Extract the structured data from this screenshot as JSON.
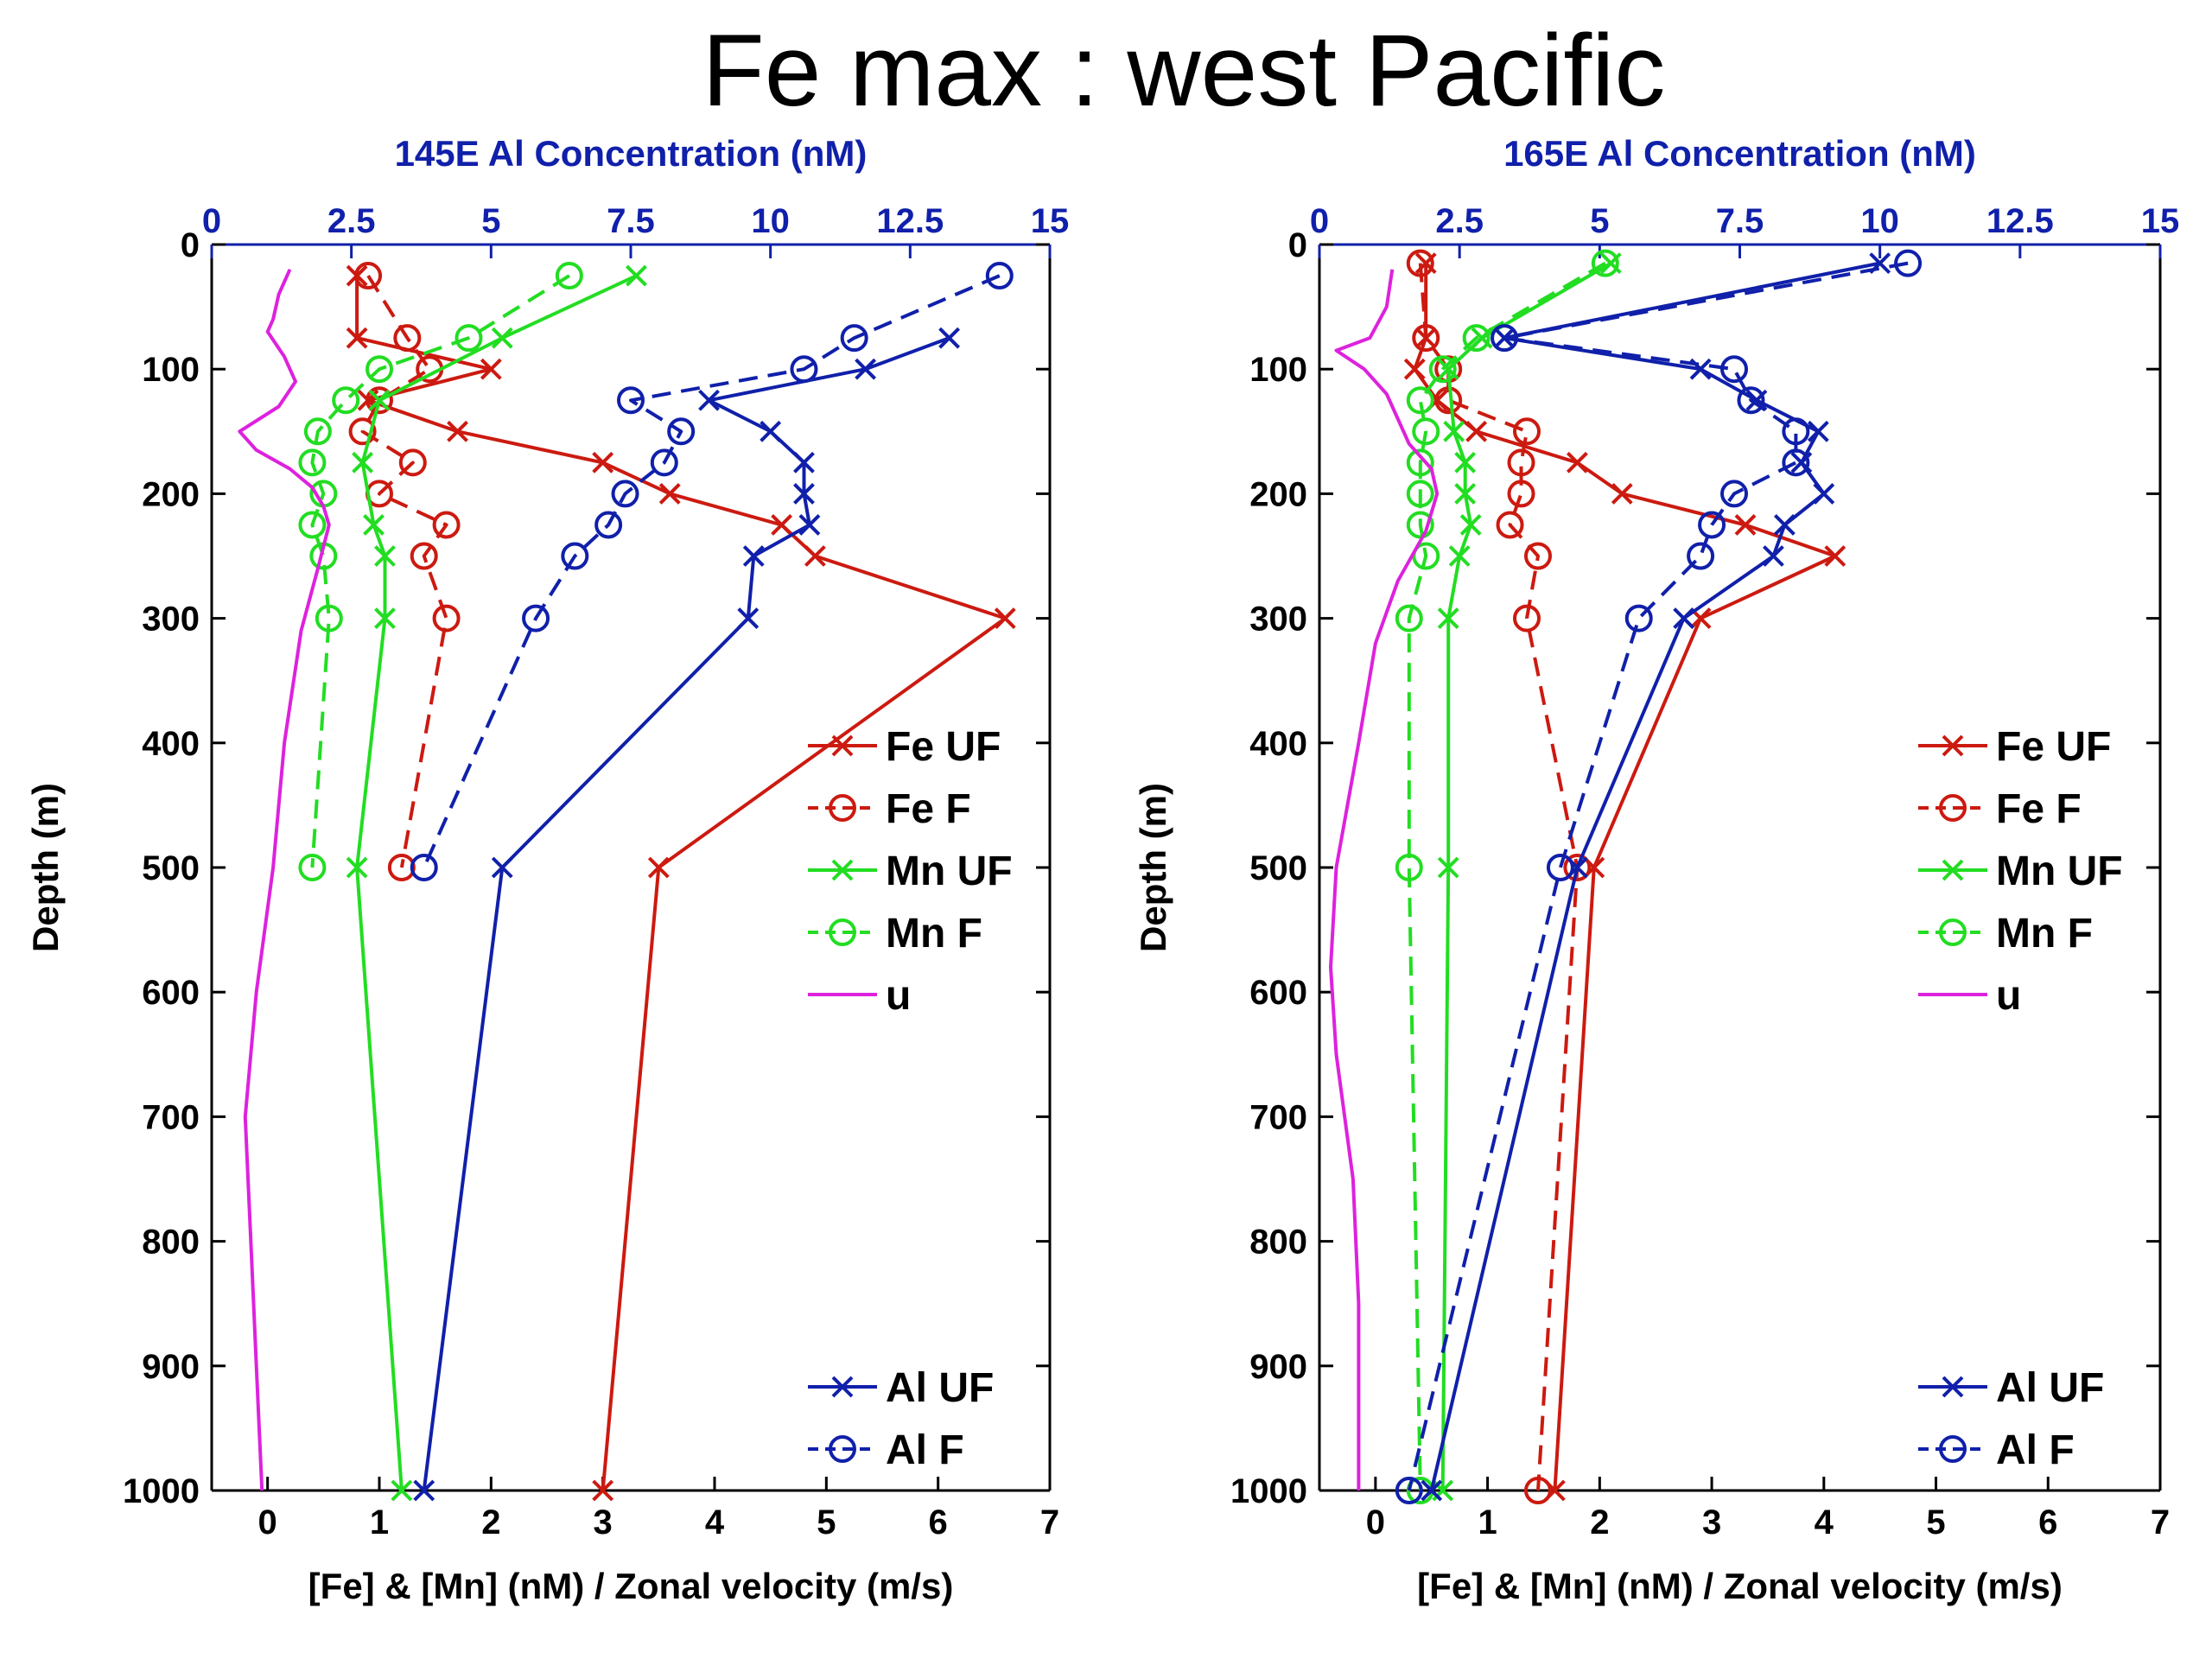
{
  "title": "Fe max : west Pacific",
  "colors": {
    "fe": "#cc1a10",
    "mn": "#22dd22",
    "al": "#1020aa",
    "u": "#dd22dd",
    "al_axis": "#1020aa"
  },
  "chart_data": [
    {
      "type": "line",
      "panel": "145E",
      "top_xlabel": "145E Al Concentration (nM)",
      "bottom_xlabel": "[Fe] & [Mn] (nM) / Zonal velocity (m/s)",
      "ylabel": "Depth (m)",
      "ylim": [
        1000,
        0
      ],
      "xlim": [
        -0.5,
        7
      ],
      "top_xlim": [
        0,
        15
      ],
      "x_ticks": [
        "0",
        "1",
        "2",
        "3",
        "4",
        "5",
        "6",
        "7"
      ],
      "top_ticks": [
        "0",
        "2.5",
        "5",
        "7.5",
        "10",
        "12.5",
        "15"
      ],
      "y_ticks": [
        "0",
        "100",
        "200",
        "300",
        "400",
        "500",
        "600",
        "700",
        "800",
        "900",
        "1000"
      ],
      "legend_upper": [
        "Fe UF",
        "Fe F",
        "Mn UF",
        "Mn F",
        "u"
      ],
      "legend_lower": [
        "Al UF",
        "Al F"
      ],
      "series": [
        {
          "name": "Fe UF",
          "axis": "bottom",
          "style": "solid",
          "marker": "x",
          "color": "fe",
          "points": [
            [
              0.8,
              25
            ],
            [
              0.8,
              75
            ],
            [
              2.0,
              100
            ],
            [
              0.9,
              125
            ],
            [
              1.7,
              150
            ],
            [
              3.0,
              175
            ],
            [
              3.6,
              200
            ],
            [
              4.6,
              225
            ],
            [
              4.9,
              250
            ],
            [
              6.6,
              300
            ],
            [
              3.5,
              500
            ],
            [
              3.0,
              1000
            ]
          ]
        },
        {
          "name": "Fe F",
          "axis": "bottom",
          "style": "dashed",
          "marker": "o",
          "color": "fe",
          "points": [
            [
              0.9,
              25
            ],
            [
              1.25,
              75
            ],
            [
              1.45,
              100
            ],
            [
              1.0,
              125
            ],
            [
              0.85,
              150
            ],
            [
              1.3,
              175
            ],
            [
              1.0,
              200
            ],
            [
              1.6,
              225
            ],
            [
              1.4,
              250
            ],
            [
              1.6,
              300
            ],
            [
              1.2,
              500
            ]
          ]
        },
        {
          "name": "Mn UF",
          "axis": "bottom",
          "style": "solid",
          "marker": "x",
          "color": "mn",
          "points": [
            [
              3.3,
              25
            ],
            [
              2.1,
              75
            ],
            [
              1.0,
              125
            ],
            [
              0.85,
              175
            ],
            [
              0.95,
              225
            ],
            [
              1.05,
              250
            ],
            [
              1.05,
              300
            ],
            [
              0.8,
              500
            ],
            [
              1.2,
              1000
            ]
          ]
        },
        {
          "name": "Mn F",
          "axis": "bottom",
          "style": "dashed",
          "marker": "o",
          "color": "mn",
          "points": [
            [
              2.7,
              25
            ],
            [
              1.8,
              75
            ],
            [
              1.0,
              100
            ],
            [
              0.7,
              125
            ],
            [
              0.45,
              150
            ],
            [
              0.4,
              175
            ],
            [
              0.5,
              200
            ],
            [
              0.4,
              225
            ],
            [
              0.5,
              250
            ],
            [
              0.55,
              300
            ],
            [
              0.4,
              500
            ]
          ]
        },
        {
          "name": "u",
          "axis": "bottom",
          "style": "solid",
          "marker": "none",
          "color": "u",
          "points": [
            [
              0.2,
              20
            ],
            [
              0.1,
              40
            ],
            [
              0.05,
              60
            ],
            [
              0.0,
              70
            ],
            [
              0.15,
              90
            ],
            [
              0.25,
              110
            ],
            [
              0.1,
              130
            ],
            [
              -0.25,
              150
            ],
            [
              -0.1,
              165
            ],
            [
              0.2,
              180
            ],
            [
              0.4,
              195
            ],
            [
              0.5,
              210
            ],
            [
              0.55,
              225
            ],
            [
              0.45,
              260
            ],
            [
              0.3,
              310
            ],
            [
              0.15,
              400
            ],
            [
              0.05,
              500
            ],
            [
              -0.1,
              600
            ],
            [
              -0.2,
              700
            ],
            [
              -0.15,
              800
            ],
            [
              -0.1,
              900
            ],
            [
              -0.05,
              1000
            ]
          ]
        },
        {
          "name": "Al UF",
          "axis": "top",
          "style": "solid",
          "marker": "x",
          "color": "al",
          "points": [
            [
              13.2,
              75
            ],
            [
              11.7,
              100
            ],
            [
              8.9,
              125
            ],
            [
              10.0,
              150
            ],
            [
              10.6,
              175
            ],
            [
              10.6,
              200
            ],
            [
              10.7,
              225
            ],
            [
              9.7,
              250
            ],
            [
              9.6,
              300
            ],
            [
              5.2,
              500
            ],
            [
              3.8,
              1000
            ]
          ]
        },
        {
          "name": "Al F",
          "axis": "top",
          "style": "dashed",
          "marker": "o",
          "color": "al",
          "points": [
            [
              14.1,
              25
            ],
            [
              11.5,
              75
            ],
            [
              10.6,
              100
            ],
            [
              7.5,
              125
            ],
            [
              8.4,
              150
            ],
            [
              8.1,
              175
            ],
            [
              7.4,
              200
            ],
            [
              7.1,
              225
            ],
            [
              6.5,
              250
            ],
            [
              5.8,
              300
            ],
            [
              3.8,
              500
            ]
          ]
        }
      ]
    },
    {
      "type": "line",
      "panel": "165E",
      "top_xlabel": "165E Al Concentration (nM)",
      "bottom_xlabel": "[Fe] & [Mn] (nM) / Zonal velocity (m/s)",
      "ylabel": "Depth (m)",
      "ylim": [
        1000,
        0
      ],
      "xlim": [
        -0.5,
        7
      ],
      "top_xlim": [
        0,
        15
      ],
      "x_ticks": [
        "0",
        "1",
        "2",
        "3",
        "4",
        "5",
        "6",
        "7"
      ],
      "top_ticks": [
        "0",
        "2.5",
        "5",
        "7.5",
        "10",
        "12.5",
        "15"
      ],
      "y_ticks": [
        "0",
        "100",
        "200",
        "300",
        "400",
        "500",
        "600",
        "700",
        "800",
        "900",
        "1000"
      ],
      "legend_upper": [
        "Fe UF",
        "Fe F",
        "Mn UF",
        "Mn F",
        "u"
      ],
      "legend_lower": [
        "Al UF",
        "Al F"
      ],
      "series": [
        {
          "name": "Fe UF",
          "axis": "bottom",
          "style": "solid",
          "marker": "x",
          "color": "fe",
          "points": [
            [
              0.45,
              15
            ],
            [
              0.45,
              75
            ],
            [
              0.35,
              100
            ],
            [
              0.55,
              125
            ],
            [
              0.9,
              150
            ],
            [
              1.8,
              175
            ],
            [
              2.2,
              200
            ],
            [
              3.3,
              225
            ],
            [
              4.1,
              250
            ],
            [
              2.9,
              300
            ],
            [
              1.95,
              500
            ],
            [
              1.6,
              1000
            ]
          ]
        },
        {
          "name": "Fe F",
          "axis": "bottom",
          "style": "dashed",
          "marker": "o",
          "color": "fe",
          "points": [
            [
              0.4,
              15
            ],
            [
              0.45,
              75
            ],
            [
              0.65,
              100
            ],
            [
              0.65,
              125
            ],
            [
              1.35,
              150
            ],
            [
              1.3,
              175
            ],
            [
              1.3,
              200
            ],
            [
              1.2,
              225
            ],
            [
              1.45,
              250
            ],
            [
              1.35,
              300
            ],
            [
              1.8,
              500
            ],
            [
              1.45,
              1000
            ]
          ]
        },
        {
          "name": "Mn UF",
          "axis": "bottom",
          "style": "solid",
          "marker": "x",
          "color": "mn",
          "points": [
            [
              2.1,
              15
            ],
            [
              0.95,
              75
            ],
            [
              0.65,
              100
            ],
            [
              0.7,
              150
            ],
            [
              0.8,
              175
            ],
            [
              0.8,
              200
            ],
            [
              0.85,
              225
            ],
            [
              0.75,
              250
            ],
            [
              0.65,
              300
            ],
            [
              0.65,
              500
            ],
            [
              0.6,
              1000
            ]
          ]
        },
        {
          "name": "Mn F",
          "axis": "bottom",
          "style": "dashed",
          "marker": "o",
          "color": "mn",
          "points": [
            [
              2.05,
              15
            ],
            [
              0.9,
              75
            ],
            [
              0.6,
              100
            ],
            [
              0.4,
              125
            ],
            [
              0.45,
              150
            ],
            [
              0.4,
              175
            ],
            [
              0.4,
              200
            ],
            [
              0.4,
              225
            ],
            [
              0.45,
              250
            ],
            [
              0.3,
              300
            ],
            [
              0.3,
              500
            ],
            [
              0.4,
              1000
            ]
          ]
        },
        {
          "name": "u",
          "axis": "bottom",
          "style": "solid",
          "marker": "none",
          "color": "u",
          "points": [
            [
              0.15,
              20
            ],
            [
              0.1,
              50
            ],
            [
              -0.05,
              75
            ],
            [
              -0.35,
              85
            ],
            [
              -0.1,
              100
            ],
            [
              0.1,
              120
            ],
            [
              0.3,
              160
            ],
            [
              0.5,
              180
            ],
            [
              0.55,
              200
            ],
            [
              0.45,
              230
            ],
            [
              0.2,
              270
            ],
            [
              0.0,
              320
            ],
            [
              -0.15,
              400
            ],
            [
              -0.35,
              500
            ],
            [
              -0.4,
              580
            ],
            [
              -0.35,
              650
            ],
            [
              -0.2,
              750
            ],
            [
              -0.15,
              850
            ],
            [
              -0.15,
              1000
            ]
          ]
        },
        {
          "name": "Al UF",
          "axis": "top",
          "style": "solid",
          "marker": "x",
          "color": "al",
          "points": [
            [
              10.0,
              15
            ],
            [
              3.3,
              75
            ],
            [
              6.8,
              100
            ],
            [
              7.8,
              125
            ],
            [
              8.9,
              150
            ],
            [
              8.6,
              175
            ],
            [
              9.0,
              200
            ],
            [
              8.3,
              225
            ],
            [
              8.1,
              250
            ],
            [
              6.5,
              300
            ],
            [
              4.6,
              500
            ],
            [
              2.0,
              1000
            ]
          ]
        },
        {
          "name": "Al F",
          "axis": "top",
          "style": "dashed",
          "marker": "o",
          "color": "al",
          "points": [
            [
              10.5,
              15
            ],
            [
              3.3,
              75
            ],
            [
              7.4,
              100
            ],
            [
              7.7,
              125
            ],
            [
              8.5,
              150
            ],
            [
              8.5,
              175
            ],
            [
              7.4,
              200
            ],
            [
              7.0,
              225
            ],
            [
              6.8,
              250
            ],
            [
              5.7,
              300
            ],
            [
              4.3,
              500
            ],
            [
              1.6,
              1000
            ]
          ]
        }
      ]
    }
  ]
}
